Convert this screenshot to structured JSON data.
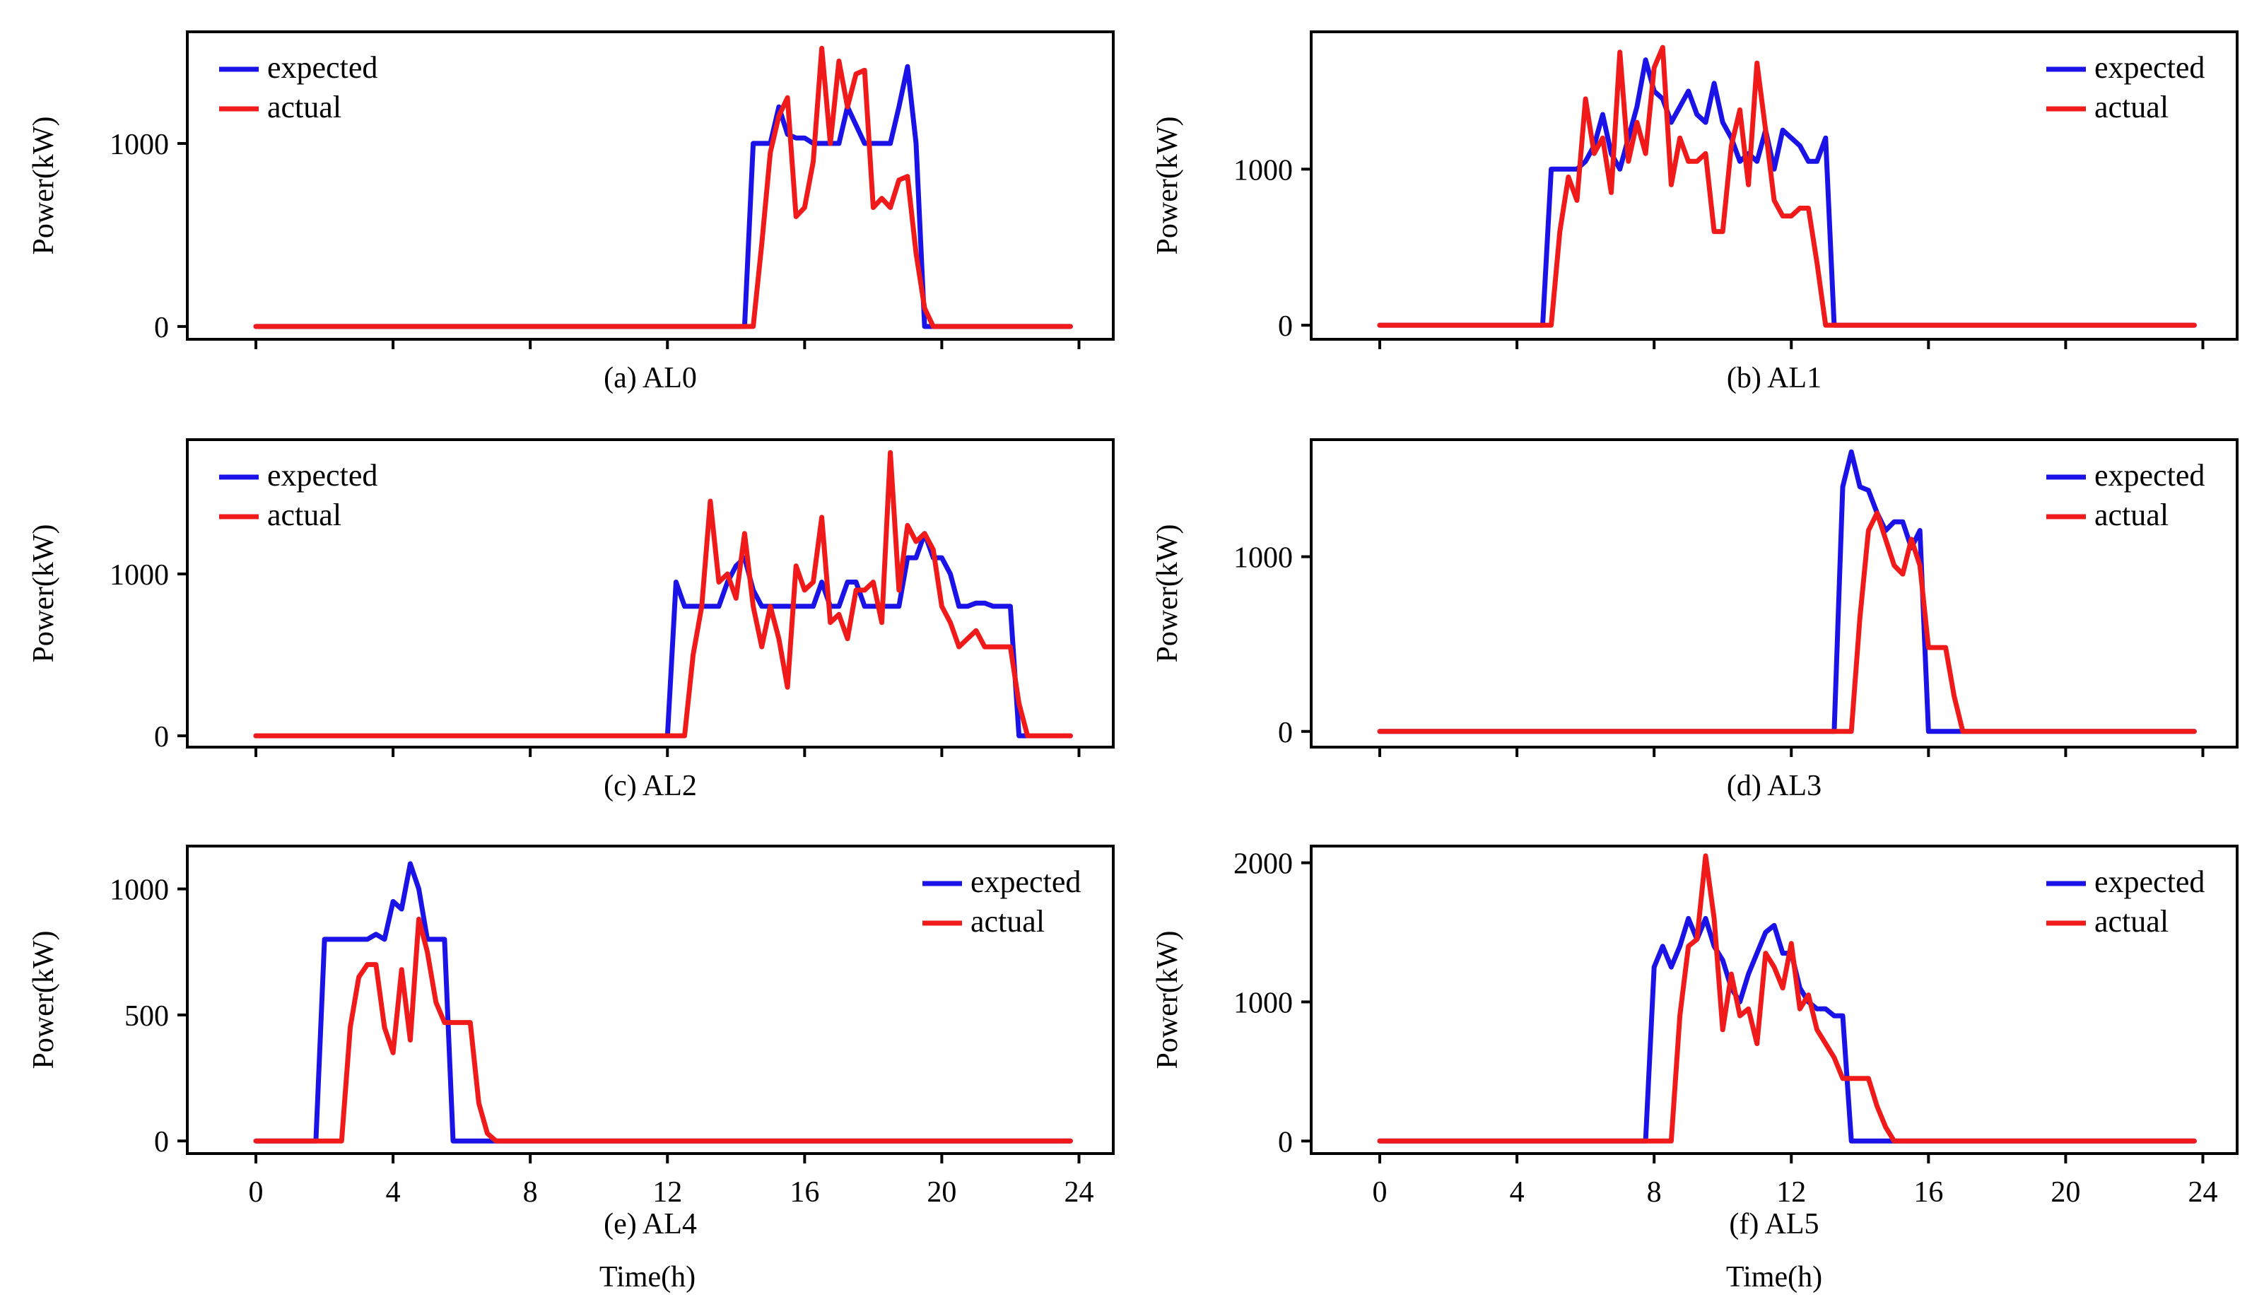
{
  "figure": {
    "xlabel": "Time(h)",
    "ylabel": "Power(kW)",
    "colors": {
      "expected": "#1a12e6",
      "actual": "#f01a1a"
    }
  },
  "chart_data": [
    {
      "type": "line",
      "caption": "(a) AL0",
      "xlim": [
        -2,
        25
      ],
      "ylim": [
        -70,
        1610
      ],
      "yticks": [
        0,
        1000
      ],
      "xticks": [
        0,
        4,
        8,
        12,
        16,
        20,
        24
      ],
      "show_xtick_labels": false,
      "legend_position": "top-left",
      "series": [
        {
          "name": "expected",
          "x": [
            0,
            14.25,
            14.5,
            14.75,
            15,
            15.25,
            15.5,
            15.75,
            16,
            16.25,
            16.5,
            16.75,
            17,
            17.25,
            17.5,
            17.75,
            18,
            18.25,
            18.5,
            18.75,
            19,
            19.25,
            19.5,
            19.75,
            23.75
          ],
          "y": [
            0,
            0,
            1000,
            1000,
            1000,
            1200,
            1050,
            1030,
            1030,
            1000,
            1000,
            1000,
            1000,
            1200,
            1100,
            1000,
            1000,
            1000,
            1000,
            1200,
            1420,
            1000,
            0,
            0,
            0
          ]
        },
        {
          "name": "actual",
          "x": [
            0,
            14.5,
            14.75,
            15,
            15.25,
            15.5,
            15.75,
            16,
            16.25,
            16.5,
            16.75,
            17,
            17.25,
            17.5,
            17.75,
            18,
            18.25,
            18.5,
            18.75,
            19,
            19.25,
            19.5,
            19.75,
            20,
            23.75
          ],
          "y": [
            0,
            0,
            450,
            950,
            1150,
            1250,
            600,
            650,
            900,
            1520,
            1000,
            1450,
            1200,
            1380,
            1400,
            650,
            700,
            650,
            800,
            820,
            400,
            100,
            0,
            0,
            0
          ]
        }
      ]
    },
    {
      "type": "line",
      "caption": "(b) AL1",
      "xlim": [
        -2,
        25
      ],
      "ylim": [
        -90,
        1880
      ],
      "yticks": [
        0,
        1000
      ],
      "xticks": [
        0,
        4,
        8,
        12,
        16,
        20,
        24
      ],
      "show_xtick_labels": false,
      "legend_position": "top-right",
      "series": [
        {
          "name": "expected",
          "x": [
            0,
            4.75,
            5,
            5.25,
            5.5,
            5.75,
            6,
            6.25,
            6.5,
            6.75,
            7,
            7.25,
            7.5,
            7.75,
            8,
            8.25,
            8.5,
            8.75,
            9,
            9.25,
            9.5,
            9.75,
            10,
            10.25,
            10.5,
            10.75,
            11,
            11.25,
            11.5,
            11.75,
            12,
            12.25,
            12.5,
            12.75,
            13,
            13.25,
            13.5,
            13.75,
            14,
            23.75
          ],
          "y": [
            0,
            0,
            1000,
            1000,
            1000,
            1000,
            1050,
            1150,
            1350,
            1100,
            1000,
            1200,
            1400,
            1700,
            1500,
            1450,
            1300,
            1400,
            1500,
            1350,
            1300,
            1550,
            1300,
            1200,
            1050,
            1100,
            1050,
            1250,
            1000,
            1250,
            1200,
            1150,
            1050,
            1050,
            1200,
            0,
            0,
            0,
            0,
            0
          ]
        },
        {
          "name": "actual",
          "x": [
            0,
            5,
            5.25,
            5.5,
            5.75,
            6,
            6.25,
            6.5,
            6.75,
            7,
            7.25,
            7.5,
            7.75,
            8,
            8.25,
            8.5,
            8.75,
            9,
            9.25,
            9.5,
            9.75,
            10,
            10.25,
            10.5,
            10.75,
            11,
            11.25,
            11.5,
            11.75,
            12,
            12.25,
            12.5,
            12.75,
            13,
            13.25,
            13.5,
            13.75,
            14,
            23.75
          ],
          "y": [
            0,
            0,
            600,
            950,
            800,
            1450,
            1100,
            1200,
            850,
            1750,
            1050,
            1300,
            1100,
            1650,
            1780,
            900,
            1200,
            1050,
            1050,
            1100,
            600,
            600,
            1150,
            1380,
            900,
            1680,
            1250,
            800,
            700,
            700,
            750,
            750,
            400,
            0,
            0,
            0,
            0,
            0,
            0
          ]
        }
      ]
    },
    {
      "type": "line",
      "caption": "(c) AL2",
      "xlim": [
        -2,
        25
      ],
      "ylim": [
        -70,
        1830
      ],
      "yticks": [
        0,
        1000
      ],
      "xticks": [
        0,
        4,
        8,
        12,
        16,
        20,
        24
      ],
      "show_xtick_labels": false,
      "legend_position": "top-left",
      "series": [
        {
          "name": "expected",
          "x": [
            0,
            12,
            12.25,
            12.5,
            12.75,
            13,
            13.25,
            13.5,
            13.75,
            14,
            14.25,
            14.5,
            14.75,
            15,
            15.25,
            15.5,
            15.75,
            16,
            16.25,
            16.5,
            16.75,
            17,
            17.25,
            17.5,
            17.75,
            18,
            18.25,
            18.5,
            18.75,
            19,
            19.25,
            19.5,
            19.75,
            20,
            20.25,
            20.5,
            20.75,
            21,
            21.25,
            21.5,
            21.75,
            22,
            22.25,
            22.5,
            23.75
          ],
          "y": [
            0,
            0,
            950,
            800,
            800,
            800,
            800,
            800,
            950,
            1050,
            1100,
            900,
            800,
            800,
            800,
            800,
            800,
            800,
            800,
            950,
            800,
            800,
            950,
            950,
            800,
            800,
            800,
            800,
            800,
            1100,
            1100,
            1250,
            1100,
            1100,
            1000,
            800,
            800,
            820,
            820,
            800,
            800,
            800,
            0,
            0,
            0
          ]
        },
        {
          "name": "actual",
          "x": [
            0,
            12.5,
            12.75,
            13,
            13.25,
            13.5,
            13.75,
            14,
            14.25,
            14.5,
            14.75,
            15,
            15.25,
            15.5,
            15.75,
            16,
            16.25,
            16.5,
            16.75,
            17,
            17.25,
            17.5,
            17.75,
            18,
            18.25,
            18.5,
            18.75,
            19,
            19.25,
            19.5,
            19.75,
            20,
            20.25,
            20.5,
            20.75,
            21,
            21.25,
            21.5,
            21.75,
            22,
            22.25,
            22.5,
            22.75,
            23,
            23.75
          ],
          "y": [
            0,
            0,
            500,
            800,
            1450,
            950,
            1000,
            850,
            1250,
            800,
            550,
            800,
            600,
            300,
            1050,
            900,
            950,
            1350,
            700,
            750,
            600,
            900,
            900,
            950,
            700,
            1750,
            900,
            1300,
            1200,
            1250,
            1150,
            800,
            700,
            550,
            600,
            650,
            550,
            550,
            550,
            550,
            200,
            0,
            0,
            0,
            0
          ]
        }
      ]
    },
    {
      "type": "line",
      "caption": "(d) AL3",
      "xlim": [
        -2,
        25
      ],
      "ylim": [
        -90,
        1670
      ],
      "yticks": [
        0,
        1000
      ],
      "xticks": [
        0,
        4,
        8,
        12,
        16,
        20,
        24
      ],
      "show_xtick_labels": false,
      "legend_position": "top-right",
      "series": [
        {
          "name": "expected",
          "x": [
            0,
            13.25,
            13.5,
            13.75,
            14,
            14.25,
            14.5,
            14.75,
            15,
            15.25,
            15.5,
            15.75,
            16,
            16.25,
            23.75
          ],
          "y": [
            0,
            0,
            1400,
            1600,
            1400,
            1380,
            1250,
            1150,
            1200,
            1200,
            1050,
            1150,
            0,
            0,
            0
          ]
        },
        {
          "name": "actual",
          "x": [
            0,
            13.75,
            14,
            14.25,
            14.5,
            14.75,
            15,
            15.25,
            15.5,
            15.75,
            16,
            16.25,
            16.5,
            16.75,
            17,
            23.75
          ],
          "y": [
            0,
            0,
            650,
            1150,
            1250,
            1100,
            950,
            900,
            1100,
            950,
            480,
            480,
            480,
            200,
            0,
            0
          ]
        }
      ]
    },
    {
      "type": "line",
      "caption": "(e) AL4",
      "xlim": [
        -2,
        25
      ],
      "ylim": [
        -50,
        1170
      ],
      "yticks": [
        0,
        500,
        1000
      ],
      "xticks": [
        0,
        4,
        8,
        12,
        16,
        20,
        24
      ],
      "show_xtick_labels": true,
      "legend_position": "top-right",
      "series": [
        {
          "name": "expected",
          "x": [
            0,
            1.75,
            2,
            2.25,
            2.5,
            2.75,
            3,
            3.25,
            3.5,
            3.75,
            4,
            4.25,
            4.5,
            4.75,
            5,
            5.25,
            5.5,
            5.75,
            6,
            23.75
          ],
          "y": [
            0,
            0,
            800,
            800,
            800,
            800,
            800,
            800,
            820,
            800,
            950,
            920,
            1100,
            1000,
            800,
            800,
            800,
            0,
            0,
            0
          ]
        },
        {
          "name": "actual",
          "x": [
            0,
            2.5,
            2.75,
            3,
            3.25,
            3.5,
            3.75,
            4,
            4.25,
            4.5,
            4.75,
            5,
            5.25,
            5.5,
            5.75,
            6,
            6.25,
            6.5,
            6.75,
            7,
            7.25,
            23.75
          ],
          "y": [
            0,
            0,
            450,
            650,
            700,
            700,
            450,
            350,
            680,
            400,
            880,
            750,
            550,
            470,
            470,
            470,
            470,
            150,
            30,
            0,
            0,
            0
          ]
        }
      ]
    },
    {
      "type": "line",
      "caption": "(f) AL5",
      "xlim": [
        -2,
        25
      ],
      "ylim": [
        -90,
        2120
      ],
      "yticks": [
        0,
        1000,
        2000
      ],
      "xticks": [
        0,
        4,
        8,
        12,
        16,
        20,
        24
      ],
      "show_xtick_labels": true,
      "legend_position": "top-right",
      "series": [
        {
          "name": "expected",
          "x": [
            0,
            7.75,
            8,
            8.25,
            8.5,
            8.75,
            9,
            9.25,
            9.5,
            9.75,
            10,
            10.25,
            10.5,
            10.75,
            11,
            11.25,
            11.5,
            11.75,
            12,
            12.25,
            12.5,
            12.75,
            13,
            13.25,
            13.5,
            13.75,
            14,
            23.75
          ],
          "y": [
            0,
            0,
            1250,
            1400,
            1250,
            1400,
            1600,
            1450,
            1600,
            1400,
            1300,
            1100,
            1000,
            1200,
            1350,
            1500,
            1550,
            1350,
            1350,
            1100,
            1000,
            950,
            950,
            900,
            900,
            0,
            0,
            0
          ]
        },
        {
          "name": "actual",
          "x": [
            0,
            8.5,
            8.75,
            9,
            9.25,
            9.5,
            9.75,
            10,
            10.25,
            10.5,
            10.75,
            11,
            11.25,
            11.5,
            11.75,
            12,
            12.25,
            12.5,
            12.75,
            13,
            13.25,
            13.5,
            13.75,
            14,
            14.25,
            14.5,
            14.75,
            15,
            23.75
          ],
          "y": [
            0,
            0,
            900,
            1400,
            1450,
            2050,
            1600,
            800,
            1200,
            900,
            950,
            700,
            1350,
            1250,
            1100,
            1420,
            950,
            1050,
            800,
            700,
            600,
            450,
            450,
            450,
            450,
            250,
            100,
            0,
            0
          ]
        }
      ]
    }
  ]
}
